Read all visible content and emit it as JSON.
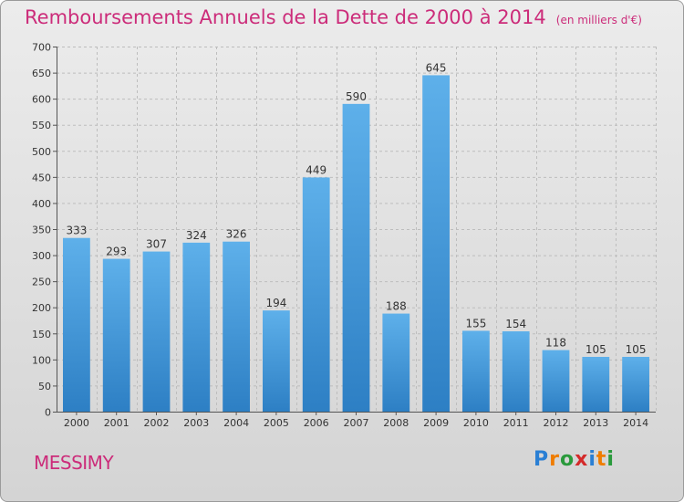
{
  "chart_data": {
    "type": "bar",
    "title": "Remboursements Annuels de la Dette de 2000 à 2014",
    "subtitle": "(en milliers d'€)",
    "categories": [
      "2000",
      "2001",
      "2002",
      "2003",
      "2004",
      "2005",
      "2006",
      "2007",
      "2008",
      "2009",
      "2010",
      "2011",
      "2012",
      "2013",
      "2014"
    ],
    "values": [
      333,
      293,
      307,
      324,
      326,
      194,
      449,
      590,
      188,
      645,
      155,
      154,
      118,
      105,
      105
    ],
    "ylim": [
      0,
      700
    ],
    "yticks": [
      0,
      50,
      100,
      150,
      200,
      250,
      300,
      350,
      400,
      450,
      500,
      550,
      600,
      650,
      700
    ],
    "xlabel": "",
    "ylabel": "",
    "grid": true
  },
  "footer": {
    "commune": "MESSIMY",
    "logo_letters": [
      "P",
      "r",
      "o",
      "x",
      "i",
      "t",
      "i"
    ],
    "logo_colors": [
      "#2a7fd4",
      "#ef7d00",
      "#2a9a3c",
      "#d42a2a",
      "#2a7fd4",
      "#ef7d00",
      "#2a9a3c"
    ]
  },
  "colors": {
    "title": "#cc2c7a",
    "bar_top": "#5eb0ea",
    "bar_bottom": "#2d7fc4",
    "grid": "#bdbdbd",
    "text": "#333333"
  }
}
